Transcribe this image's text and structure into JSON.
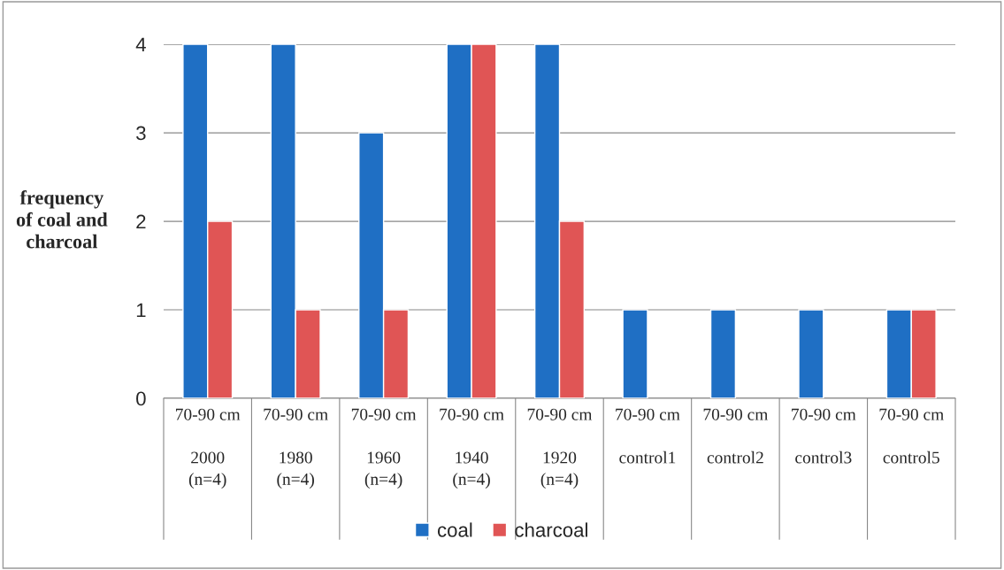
{
  "chart_data": {
    "type": "bar",
    "ylabel": "frequency\nof coal and\ncharcoal",
    "categories": [
      "70-90 cm\n\n2000\n(n=4)",
      "70-90 cm\n\n1980\n(n=4)",
      "70-90 cm\n\n1960\n(n=4)",
      "70-90 cm\n\n1940\n(n=4)",
      "70-90 cm\n\n1920\n(n=4)",
      "70-90 cm\n\ncontrol1",
      "70-90 cm\n\ncontrol2",
      "70-90 cm\n\ncontrol3",
      "70-90 cm\n\ncontrol5"
    ],
    "series": [
      {
        "name": "coal",
        "color": "#1f6fc4",
        "values": [
          4,
          4,
          3,
          4,
          4,
          1,
          1,
          1,
          1
        ]
      },
      {
        "name": "charcoal",
        "color": "#e05555",
        "values": [
          2,
          1,
          1,
          4,
          2,
          null,
          null,
          null,
          1
        ]
      }
    ],
    "ylim": [
      0,
      4
    ],
    "yticks": [
      0,
      1,
      2,
      3,
      4
    ],
    "grid": "y",
    "legend": "bottom"
  }
}
